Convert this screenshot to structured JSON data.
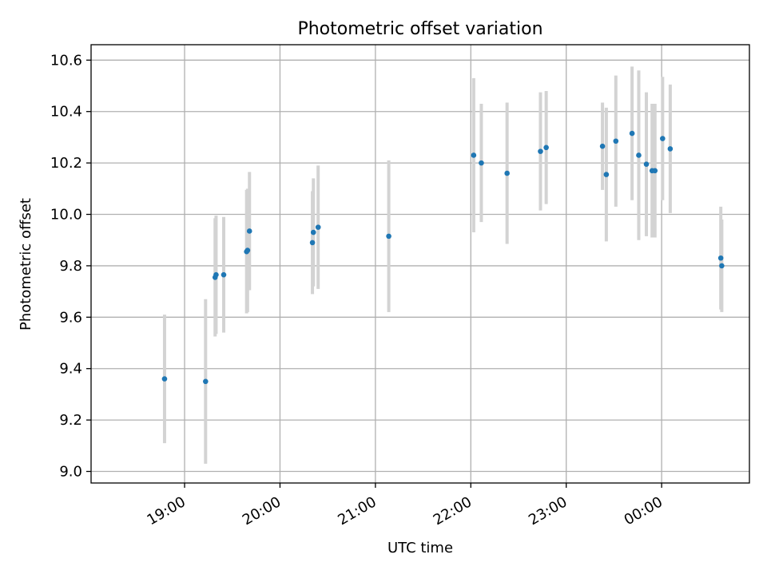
{
  "chart_data": {
    "type": "scatter",
    "title": "Photometric offset variation",
    "xlabel": "UTC time",
    "ylabel": "Photometric offset",
    "grid": true,
    "xlim": [
      -0.98,
      5.92
    ],
    "ylim": [
      8.955,
      10.66
    ],
    "x_ticks": [
      {
        "value": 0,
        "label": "19:00"
      },
      {
        "value": 1,
        "label": "20:00"
      },
      {
        "value": 2,
        "label": "21:00"
      },
      {
        "value": 3,
        "label": "22:00"
      },
      {
        "value": 4,
        "label": "23:00"
      },
      {
        "value": 5,
        "label": "00:00"
      }
    ],
    "y_ticks": [
      {
        "value": 9.0,
        "label": "9.0"
      },
      {
        "value": 9.2,
        "label": "9.2"
      },
      {
        "value": 9.4,
        "label": "9.4"
      },
      {
        "value": 9.6,
        "label": "9.6"
      },
      {
        "value": 9.8,
        "label": "9.8"
      },
      {
        "value": 10.0,
        "label": "10.0"
      },
      {
        "value": 10.2,
        "label": "10.2"
      },
      {
        "value": 10.4,
        "label": "10.4"
      },
      {
        "value": 10.6,
        "label": "10.6"
      }
    ],
    "x_unit_note": "hours after 19:00 UTC",
    "colors": {
      "point": "#1f77b4",
      "errorbar": "#d3d3d3"
    },
    "points": [
      {
        "x": -0.21,
        "y": 9.36,
        "err": 0.25
      },
      {
        "x": 0.22,
        "y": 9.35,
        "err": 0.32
      },
      {
        "x": 0.32,
        "y": 9.755,
        "err": 0.23
      },
      {
        "x": 0.33,
        "y": 9.765,
        "err": 0.23
      },
      {
        "x": 0.41,
        "y": 9.765,
        "err": 0.225
      },
      {
        "x": 0.65,
        "y": 9.855,
        "err": 0.24
      },
      {
        "x": 0.66,
        "y": 9.86,
        "err": 0.24
      },
      {
        "x": 0.68,
        "y": 9.935,
        "err": 0.23
      },
      {
        "x": 1.34,
        "y": 9.89,
        "err": 0.2
      },
      {
        "x": 1.35,
        "y": 9.93,
        "err": 0.21
      },
      {
        "x": 1.4,
        "y": 9.95,
        "err": 0.24
      },
      {
        "x": 2.14,
        "y": 9.915,
        "err": 0.295
      },
      {
        "x": 3.03,
        "y": 10.23,
        "err": 0.3
      },
      {
        "x": 3.11,
        "y": 10.2,
        "err": 0.23
      },
      {
        "x": 3.38,
        "y": 10.16,
        "err": 0.275
      },
      {
        "x": 3.73,
        "y": 10.245,
        "err": 0.23
      },
      {
        "x": 3.79,
        "y": 10.26,
        "err": 0.22
      },
      {
        "x": 4.38,
        "y": 10.265,
        "err": 0.17
      },
      {
        "x": 4.42,
        "y": 10.155,
        "err": 0.26
      },
      {
        "x": 4.52,
        "y": 10.285,
        "err": 0.255
      },
      {
        "x": 4.69,
        "y": 10.315,
        "err": 0.26
      },
      {
        "x": 4.76,
        "y": 10.23,
        "err": 0.33
      },
      {
        "x": 4.84,
        "y": 10.195,
        "err": 0.28
      },
      {
        "x": 4.9,
        "y": 10.17,
        "err": 0.26
      },
      {
        "x": 4.93,
        "y": 10.17,
        "err": 0.26
      },
      {
        "x": 5.01,
        "y": 10.295,
        "err": 0.24
      },
      {
        "x": 5.09,
        "y": 10.255,
        "err": 0.25
      },
      {
        "x": 5.62,
        "y": 9.83,
        "err": 0.2
      },
      {
        "x": 5.63,
        "y": 9.8,
        "err": 0.18
      }
    ]
  }
}
